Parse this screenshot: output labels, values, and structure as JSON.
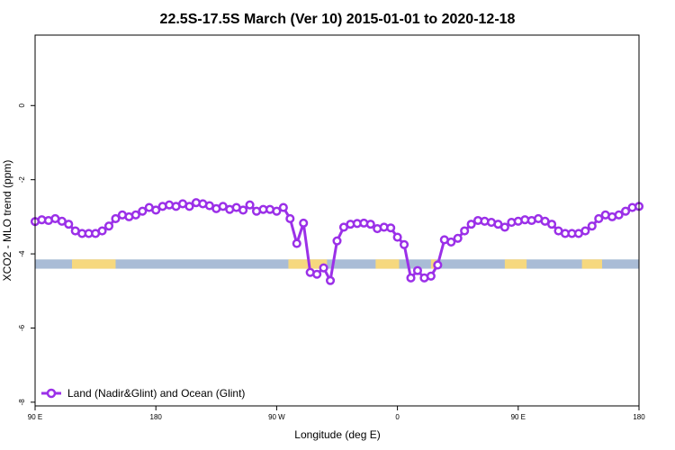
{
  "chart_data": {
    "type": "line",
    "title": "22.5S-17.5S March (Ver 10)   2015-01-01 to 2020-12-18",
    "xlabel": "Longitude (deg E)",
    "ylabel": "XCO2 - MLO trend (ppm)",
    "xlim": [
      90,
      450
    ],
    "ylim": [
      -8.1,
      1.9
    ],
    "x_ticks": [
      {
        "value": 90,
        "label": "90 E"
      },
      {
        "value": 162,
        "label": "180"
      },
      {
        "value": 234,
        "label": "90 W"
      },
      {
        "value": 306,
        "label": "0"
      },
      {
        "value": 378,
        "label": "90 E"
      },
      {
        "value": 450,
        "label": "180"
      }
    ],
    "y_ticks": [
      {
        "value": 0,
        "label": "0"
      },
      {
        "value": -2,
        "label": "-2"
      },
      {
        "value": -4,
        "label": "-4"
      },
      {
        "value": -6,
        "label": "-6"
      },
      {
        "value": -8,
        "label": "-8"
      }
    ],
    "grid": false,
    "legend_position": "bottom-left",
    "series": [
      {
        "name": "Land (Nadir&Glint) and Ocean (Glint)",
        "color": "#9b30e8",
        "x": [
          90,
          94,
          98,
          102,
          106,
          110,
          114,
          118,
          122,
          126,
          130,
          134,
          138,
          142,
          146,
          150,
          154,
          158,
          162,
          166,
          170,
          174,
          178,
          182,
          186,
          190,
          194,
          198,
          202,
          206,
          210,
          214,
          218,
          222,
          226,
          230,
          234,
          238,
          242,
          246,
          250,
          254,
          258,
          262,
          266,
          270,
          274,
          278,
          282,
          286,
          290,
          294,
          298,
          302,
          306,
          310,
          314,
          318,
          322,
          326,
          330,
          334,
          338,
          342,
          346,
          350,
          354,
          358,
          362,
          366,
          370,
          374,
          378,
          382,
          386,
          390,
          394,
          398,
          402,
          406,
          410,
          414,
          418,
          422,
          426,
          430,
          434,
          438,
          442,
          446,
          450
        ],
        "y": [
          -3.13,
          -3.08,
          -3.1,
          -3.05,
          -3.12,
          -3.2,
          -3.38,
          -3.45,
          -3.45,
          -3.45,
          -3.38,
          -3.25,
          -3.05,
          -2.95,
          -3.0,
          -2.95,
          -2.85,
          -2.75,
          -2.82,
          -2.72,
          -2.68,
          -2.72,
          -2.65,
          -2.72,
          -2.62,
          -2.65,
          -2.7,
          -2.78,
          -2.72,
          -2.8,
          -2.75,
          -2.82,
          -2.68,
          -2.85,
          -2.8,
          -2.8,
          -2.85,
          -2.75,
          -3.05,
          -3.72,
          -3.17,
          -4.5,
          -4.55,
          -4.38,
          -4.72,
          -3.65,
          -3.28,
          -3.2,
          -3.18,
          -3.17,
          -3.2,
          -3.32,
          -3.28,
          -3.3,
          -3.55,
          -3.75,
          -4.65,
          -4.45,
          -4.65,
          -4.6,
          -4.3,
          -3.62,
          -3.68,
          -3.58,
          -3.38,
          -3.2,
          -3.1,
          -3.12,
          -3.15,
          -3.2,
          -3.28,
          -3.15,
          -3.12,
          -3.08,
          -3.1,
          -3.05,
          -3.12,
          -3.2,
          -3.38,
          -3.45,
          -3.45,
          -3.45,
          -3.38,
          -3.25,
          -3.05,
          -2.95,
          -3.0,
          -2.95,
          -2.85,
          -2.75,
          -2.72
        ]
      }
    ],
    "surface_band": {
      "y_top": -4.15,
      "y_bottom": -4.4,
      "ocean_color": "#a9bcd6",
      "land_color": "#f6d87e",
      "land_ranges": [
        [
          112,
          138
        ],
        [
          241,
          264
        ],
        [
          293,
          307
        ],
        [
          326,
          329
        ],
        [
          370,
          383
        ],
        [
          416,
          428
        ]
      ]
    }
  }
}
